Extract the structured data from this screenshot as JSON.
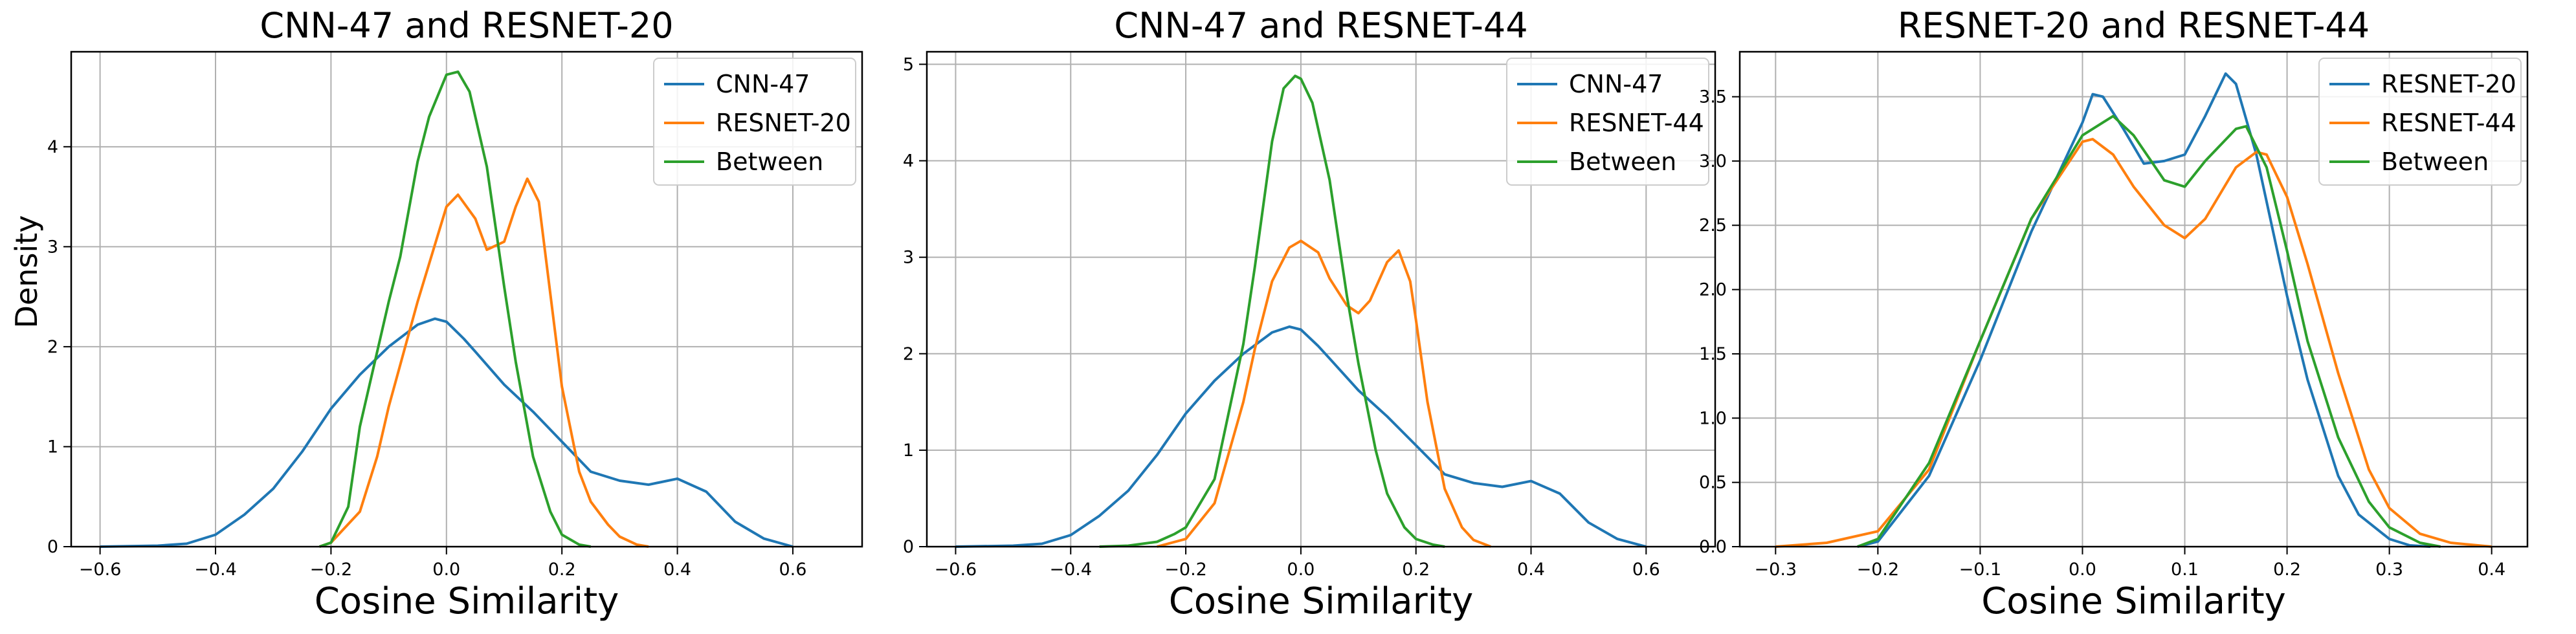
{
  "figure": {
    "ylabel": "Density"
  },
  "chart_data": [
    {
      "type": "line",
      "title": "CNN-47 and RESNET-20",
      "xlabel": "Cosine Similarity",
      "ylabel": "Density",
      "xlim": [
        -0.65,
        0.72
      ],
      "ylim": [
        0,
        4.95
      ],
      "xticks": [
        -0.6,
        -0.4,
        -0.2,
        0.0,
        0.2,
        0.4,
        0.6
      ],
      "xtick_labels": [
        "−0.6",
        "−0.4",
        "−0.2",
        "0.0",
        "0.2",
        "0.4",
        "0.6"
      ],
      "yticks": [
        0,
        1,
        2,
        3,
        4
      ],
      "ytick_labels": [
        "0",
        "1",
        "2",
        "3",
        "4"
      ],
      "grid": true,
      "legend": "top-right",
      "series": [
        {
          "name": "CNN-47",
          "color": "#1f77b4",
          "x": [
            -0.6,
            -0.5,
            -0.45,
            -0.4,
            -0.35,
            -0.3,
            -0.25,
            -0.2,
            -0.15,
            -0.1,
            -0.05,
            -0.02,
            0.0,
            0.03,
            0.05,
            0.1,
            0.15,
            0.2,
            0.25,
            0.3,
            0.35,
            0.4,
            0.45,
            0.5,
            0.55,
            0.6
          ],
          "y": [
            0.0,
            0.01,
            0.03,
            0.12,
            0.32,
            0.58,
            0.95,
            1.38,
            1.72,
            2.0,
            2.22,
            2.28,
            2.25,
            2.08,
            1.95,
            1.62,
            1.35,
            1.05,
            0.75,
            0.66,
            0.62,
            0.68,
            0.55,
            0.25,
            0.08,
            0.0
          ]
        },
        {
          "name": "RESNET-20",
          "color": "#ff7f0e",
          "x": [
            -0.22,
            -0.2,
            -0.15,
            -0.12,
            -0.1,
            -0.05,
            0.0,
            0.02,
            0.05,
            0.07,
            0.1,
            0.12,
            0.14,
            0.16,
            0.2,
            0.23,
            0.25,
            0.28,
            0.3,
            0.33,
            0.35
          ],
          "y": [
            0.0,
            0.04,
            0.35,
            0.9,
            1.4,
            2.45,
            3.4,
            3.52,
            3.28,
            2.97,
            3.05,
            3.4,
            3.68,
            3.45,
            1.6,
            0.75,
            0.45,
            0.22,
            0.1,
            0.02,
            0.0
          ]
        },
        {
          "name": "Between",
          "color": "#2ca02c",
          "x": [
            -0.22,
            -0.2,
            -0.17,
            -0.15,
            -0.1,
            -0.08,
            -0.05,
            -0.03,
            0.0,
            0.02,
            0.04,
            0.07,
            0.1,
            0.12,
            0.15,
            0.18,
            0.2,
            0.23,
            0.25
          ],
          "y": [
            0.0,
            0.04,
            0.4,
            1.2,
            2.45,
            2.9,
            3.85,
            4.3,
            4.72,
            4.75,
            4.55,
            3.8,
            2.6,
            1.85,
            0.9,
            0.35,
            0.12,
            0.02,
            0.0
          ]
        }
      ]
    },
    {
      "type": "line",
      "title": "CNN-47 and RESNET-44",
      "xlabel": "Cosine Similarity",
      "ylabel": "",
      "xlim": [
        -0.65,
        0.72
      ],
      "ylim": [
        0,
        5.13
      ],
      "xticks": [
        -0.6,
        -0.4,
        -0.2,
        0.0,
        0.2,
        0.4,
        0.6
      ],
      "xtick_labels": [
        "−0.6",
        "−0.4",
        "−0.2",
        "0.0",
        "0.2",
        "0.4",
        "0.6"
      ],
      "yticks": [
        0,
        1,
        2,
        3,
        4,
        5
      ],
      "ytick_labels": [
        "0",
        "1",
        "2",
        "3",
        "4",
        "5"
      ],
      "grid": true,
      "legend": "top-right",
      "series": [
        {
          "name": "CNN-47",
          "color": "#1f77b4",
          "x": [
            -0.6,
            -0.5,
            -0.45,
            -0.4,
            -0.35,
            -0.3,
            -0.25,
            -0.2,
            -0.15,
            -0.1,
            -0.05,
            -0.02,
            0.0,
            0.03,
            0.05,
            0.1,
            0.15,
            0.2,
            0.25,
            0.3,
            0.35,
            0.4,
            0.45,
            0.5,
            0.55,
            0.6
          ],
          "y": [
            0.0,
            0.01,
            0.03,
            0.12,
            0.32,
            0.58,
            0.95,
            1.38,
            1.72,
            2.0,
            2.22,
            2.28,
            2.25,
            2.08,
            1.95,
            1.62,
            1.35,
            1.05,
            0.75,
            0.66,
            0.62,
            0.68,
            0.55,
            0.25,
            0.08,
            0.0
          ]
        },
        {
          "name": "RESNET-44",
          "color": "#ff7f0e",
          "x": [
            -0.25,
            -0.2,
            -0.15,
            -0.1,
            -0.08,
            -0.05,
            -0.02,
            0.0,
            0.03,
            0.05,
            0.08,
            0.1,
            0.12,
            0.15,
            0.17,
            0.19,
            0.2,
            0.22,
            0.25,
            0.28,
            0.3,
            0.33
          ],
          "y": [
            0.0,
            0.08,
            0.45,
            1.5,
            2.05,
            2.75,
            3.1,
            3.17,
            3.05,
            2.78,
            2.5,
            2.42,
            2.55,
            2.95,
            3.07,
            2.75,
            2.35,
            1.5,
            0.6,
            0.2,
            0.07,
            0.0
          ]
        },
        {
          "name": "Between",
          "color": "#2ca02c",
          "x": [
            -0.35,
            -0.3,
            -0.25,
            -0.22,
            -0.2,
            -0.15,
            -0.1,
            -0.08,
            -0.05,
            -0.03,
            -0.01,
            0.0,
            0.02,
            0.05,
            0.08,
            0.1,
            0.13,
            0.15,
            0.18,
            0.2,
            0.23,
            0.25
          ],
          "y": [
            0.0,
            0.01,
            0.05,
            0.13,
            0.2,
            0.7,
            2.1,
            2.9,
            4.2,
            4.75,
            4.88,
            4.85,
            4.6,
            3.8,
            2.6,
            1.9,
            1.0,
            0.55,
            0.2,
            0.08,
            0.02,
            0.0
          ]
        }
      ]
    },
    {
      "type": "line",
      "title": "RESNET-20 and RESNET-44",
      "xlabel": "Cosine Similarity",
      "ylabel": "",
      "xlim": [
        -0.335,
        0.435
      ],
      "ylim": [
        0,
        3.85
      ],
      "xticks": [
        -0.3,
        -0.2,
        -0.1,
        0.0,
        0.1,
        0.2,
        0.3,
        0.4
      ],
      "xtick_labels": [
        "−0.3",
        "−0.2",
        "−0.1",
        "0.0",
        "0.1",
        "0.2",
        "0.3",
        "0.4"
      ],
      "yticks": [
        0,
        0.5,
        1.0,
        1.5,
        2.0,
        2.5,
        3.0,
        3.5
      ],
      "ytick_labels": [
        "0.0",
        "0.5",
        "1.0",
        "1.5",
        "2.0",
        "2.5",
        "3.0",
        "3.5"
      ],
      "grid": true,
      "legend": "top-right",
      "series": [
        {
          "name": "RESNET-20",
          "color": "#1f77b4",
          "x": [
            -0.22,
            -0.2,
            -0.15,
            -0.1,
            -0.05,
            0.0,
            0.01,
            0.02,
            0.04,
            0.06,
            0.08,
            0.1,
            0.12,
            0.14,
            0.15,
            0.17,
            0.2,
            0.22,
            0.25,
            0.27,
            0.3,
            0.32,
            0.34
          ],
          "y": [
            0.0,
            0.04,
            0.55,
            1.45,
            2.45,
            3.3,
            3.52,
            3.5,
            3.25,
            2.98,
            3.0,
            3.05,
            3.35,
            3.68,
            3.6,
            3.05,
            1.95,
            1.3,
            0.55,
            0.25,
            0.06,
            0.01,
            0.0
          ]
        },
        {
          "name": "RESNET-44",
          "color": "#ff7f0e",
          "x": [
            -0.3,
            -0.25,
            -0.2,
            -0.15,
            -0.1,
            -0.05,
            0.0,
            0.01,
            0.03,
            0.05,
            0.08,
            0.1,
            0.12,
            0.15,
            0.17,
            0.18,
            0.2,
            0.22,
            0.25,
            0.28,
            0.3,
            0.33,
            0.36,
            0.4
          ],
          "y": [
            0.0,
            0.03,
            0.12,
            0.6,
            1.6,
            2.55,
            3.15,
            3.17,
            3.05,
            2.8,
            2.5,
            2.4,
            2.55,
            2.95,
            3.07,
            3.05,
            2.72,
            2.2,
            1.35,
            0.6,
            0.3,
            0.1,
            0.03,
            0.0
          ]
        },
        {
          "name": "Between",
          "color": "#2ca02c",
          "x": [
            -0.22,
            -0.2,
            -0.15,
            -0.1,
            -0.05,
            0.0,
            0.02,
            0.03,
            0.05,
            0.08,
            0.1,
            0.12,
            0.15,
            0.16,
            0.18,
            0.2,
            0.22,
            0.25,
            0.28,
            0.3,
            0.33,
            0.35
          ],
          "y": [
            0.0,
            0.06,
            0.65,
            1.6,
            2.55,
            3.2,
            3.3,
            3.35,
            3.2,
            2.85,
            2.8,
            3.0,
            3.25,
            3.27,
            2.95,
            2.3,
            1.6,
            0.85,
            0.35,
            0.15,
            0.03,
            0.0
          ]
        }
      ]
    }
  ]
}
